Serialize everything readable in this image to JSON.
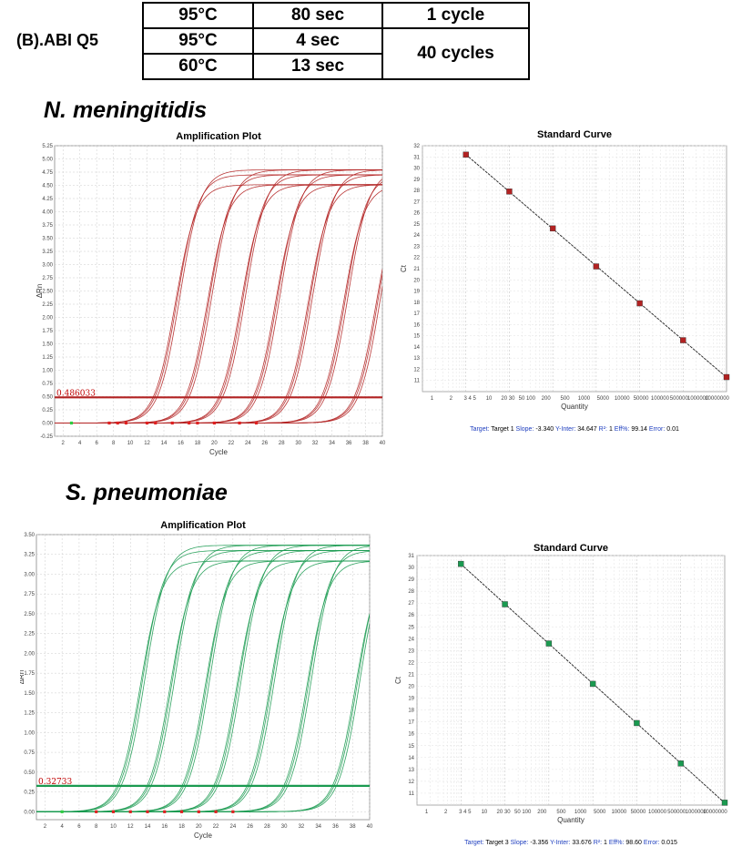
{
  "protocol": {
    "label": "(B).ABI Q5",
    "rows": [
      {
        "temp": "95°C",
        "time": "80 sec",
        "cycles": "1 cycle"
      },
      {
        "temp": "95°C",
        "time": "4 sec",
        "cycles": "40 cycles"
      },
      {
        "temp": "60°C",
        "time": "13 sec",
        "cycles": "40 cycles"
      }
    ]
  },
  "panels": [
    {
      "organism": "N. meningitidis",
      "color": "#b22222"
    },
    {
      "organism": "S. pneumoniae",
      "color": "#1a9a50"
    }
  ],
  "chart_data": [
    {
      "type": "line",
      "title": "Amplification Plot",
      "xlabel": "Cycle",
      "ylabel": "ΔRn",
      "xlim": [
        1,
        40
      ],
      "ylim": [
        -0.25,
        5.25
      ],
      "xticks": [
        "2",
        "4",
        "6",
        "8",
        "10",
        "12",
        "14",
        "16",
        "18",
        "20",
        "22",
        "24",
        "26",
        "28",
        "30",
        "32",
        "34",
        "36",
        "38",
        "40"
      ],
      "yticks": [
        "-0.25",
        "0.00",
        "0.25",
        "0.50",
        "0.75",
        "1.00",
        "1.25",
        "1.50",
        "1.75",
        "2.00",
        "2.25",
        "2.50",
        "2.75",
        "3.00",
        "3.25",
        "3.50",
        "3.75",
        "4.00",
        "4.25",
        "4.50",
        "4.75",
        "5.00",
        "5.25"
      ],
      "threshold": {
        "label": "0.486033",
        "value": 0.486033
      },
      "plateau": 4.7,
      "midpoints": [
        15.6,
        19.4,
        23.4,
        27.5,
        31.4,
        35.6,
        39.5
      ],
      "ct_markers": [
        3,
        7.5,
        8.5,
        9.5,
        12,
        13,
        15,
        17,
        18,
        20,
        23,
        25
      ],
      "series": []
    },
    {
      "type": "scatter",
      "title": "Standard Curve",
      "xlabel": "Quantity",
      "ylabel": "Ct",
      "log_x": true,
      "xlim": [
        1,
        10000000
      ],
      "ylim": [
        10,
        32
      ],
      "xticks": [
        "1",
        "2",
        "3 4 5",
        "10",
        "20 30",
        "50 100",
        "200",
        "500",
        "1000",
        "5000",
        "10000",
        "50000",
        "100000",
        "500000",
        "1000000",
        "10000000"
      ],
      "yticks": [
        "11",
        "12",
        "13",
        "14",
        "15",
        "16",
        "17",
        "18",
        "19",
        "20",
        "21",
        "22",
        "23",
        "24",
        "25",
        "26",
        "27",
        "28",
        "29",
        "30",
        "31",
        "32"
      ],
      "x": [
        10,
        100,
        1000,
        10000,
        100000,
        1000000,
        10000000
      ],
      "y": [
        31.2,
        27.9,
        24.6,
        21.2,
        17.9,
        14.6,
        11.3
      ],
      "footer": {
        "target_label": "Target:",
        "target": "Target 1",
        "slope_label": "Slope:",
        "slope": "-3.340",
        "intercept_label": "Y-Inter:",
        "intercept": "34.647",
        "r2_label": "R²:",
        "r2": "1",
        "eff_label": "Eff%:",
        "eff": "99.14",
        "error_label": "Error:",
        "error": "0.01"
      }
    },
    {
      "type": "line",
      "title": "Amplification Plot",
      "xlabel": "Cycle",
      "ylabel": "ΔRn",
      "xlim": [
        1,
        40
      ],
      "ylim": [
        -0.1,
        3.5
      ],
      "xticks": [
        "2",
        "4",
        "6",
        "8",
        "10",
        "12",
        "14",
        "16",
        "18",
        "20",
        "22",
        "24",
        "26",
        "28",
        "30",
        "32",
        "34",
        "36",
        "38",
        "40"
      ],
      "yticks": [
        "0.00",
        "0.25",
        "0.50",
        "0.75",
        "1.00",
        "1.25",
        "1.50",
        "1.75",
        "2.00",
        "2.25",
        "2.50",
        "2.75",
        "3.00",
        "3.25",
        "3.50"
      ],
      "threshold": {
        "label": "0.32733",
        "value": 0.327
      },
      "plateau": 3.3,
      "midpoints": [
        13.4,
        16.9,
        21.0,
        24.7,
        28.6,
        32.9,
        38.6
      ],
      "ct_markers": [
        4,
        8,
        10,
        12,
        14,
        16,
        18,
        20,
        22,
        24
      ],
      "series": []
    },
    {
      "type": "scatter",
      "title": "Standard Curve",
      "xlabel": "Quantity",
      "ylabel": "Ct",
      "log_x": true,
      "xlim": [
        1,
        10000000
      ],
      "ylim": [
        10,
        31
      ],
      "xticks": [
        "1",
        "2",
        "3 4 5",
        "10",
        "20 30",
        "50 100",
        "200",
        "500",
        "1000",
        "5000",
        "10000",
        "50000",
        "100000",
        "500000",
        "1000000",
        "10000000"
      ],
      "yticks": [
        "11",
        "12",
        "13",
        "14",
        "15",
        "16",
        "17",
        "18",
        "19",
        "20",
        "21",
        "22",
        "23",
        "24",
        "25",
        "26",
        "27",
        "28",
        "29",
        "30",
        "31"
      ],
      "x": [
        10,
        100,
        1000,
        10000,
        100000,
        1000000,
        10000000
      ],
      "y": [
        30.3,
        26.9,
        23.6,
        20.2,
        16.9,
        13.5,
        10.2
      ],
      "footer": {
        "target_label": "Target:",
        "target": "Target 3",
        "slope_label": "Slope:",
        "slope": "-3.356",
        "intercept_label": "Y-Inter:",
        "intercept": "33.676",
        "r2_label": "R²:",
        "r2": "1",
        "eff_label": "Eff%:",
        "eff": "98.60",
        "error_label": "Error:",
        "error": "0.015"
      }
    }
  ]
}
